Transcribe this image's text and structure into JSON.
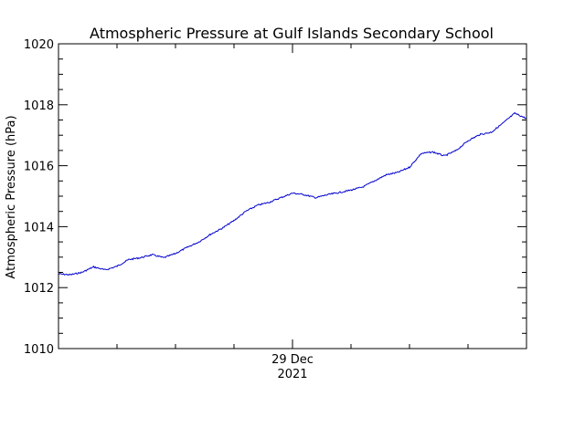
{
  "chart_data": {
    "type": "line",
    "title": "Atmospheric Pressure at Gulf Islands Secondary School",
    "xlabel": "",
    "ylabel": "Atmospheric Pressure (hPa)",
    "xlim": [
      "2021-12-28T00:00",
      "2021-12-30T00:00"
    ],
    "ylim": [
      1010,
      1020
    ],
    "y_ticks": [
      1010,
      1012,
      1014,
      1016,
      1018,
      1020
    ],
    "x_tick_labels": [
      {
        "x": "2021-12-29T00:00",
        "line1": "29 Dec",
        "line2": "2021"
      }
    ],
    "grid": false,
    "line_color": "#0000cc",
    "series": [
      {
        "x": [
          "2021-12-28T00:00",
          "2021-12-28T01:12",
          "2021-12-28T02:24",
          "2021-12-28T03:36",
          "2021-12-28T04:48",
          "2021-12-28T06:00",
          "2021-12-28T07:12",
          "2021-12-28T08:24",
          "2021-12-28T09:36",
          "2021-12-28T10:48",
          "2021-12-28T12:00",
          "2021-12-28T13:12",
          "2021-12-28T14:24",
          "2021-12-28T15:36",
          "2021-12-28T16:48",
          "2021-12-28T18:00",
          "2021-12-28T19:12",
          "2021-12-28T20:24",
          "2021-12-28T21:36",
          "2021-12-28T22:48",
          "2021-12-29T00:00",
          "2021-12-29T01:12",
          "2021-12-29T02:24",
          "2021-12-29T03:36",
          "2021-12-29T04:48",
          "2021-12-29T06:00",
          "2021-12-29T07:12",
          "2021-12-29T08:24",
          "2021-12-29T09:36",
          "2021-12-29T10:48",
          "2021-12-29T12:00",
          "2021-12-29T13:12",
          "2021-12-29T14:24",
          "2021-12-29T15:36",
          "2021-12-29T16:48",
          "2021-12-29T18:00",
          "2021-12-29T19:12",
          "2021-12-29T20:24",
          "2021-12-29T21:36",
          "2021-12-29T22:48",
          "2021-12-30T00:00"
        ],
        "values": [
          1012.45,
          1012.42,
          1012.5,
          1012.68,
          1012.58,
          1012.7,
          1012.92,
          1012.98,
          1013.08,
          1012.98,
          1013.12,
          1013.32,
          1013.5,
          1013.75,
          1013.95,
          1014.2,
          1014.5,
          1014.7,
          1014.8,
          1014.95,
          1015.1,
          1015.05,
          1014.95,
          1015.05,
          1015.12,
          1015.2,
          1015.3,
          1015.5,
          1015.7,
          1015.78,
          1015.95,
          1016.4,
          1016.45,
          1016.32,
          1016.5,
          1016.82,
          1017.02,
          1017.1,
          1017.4,
          1017.72,
          1017.55
        ]
      }
    ]
  }
}
